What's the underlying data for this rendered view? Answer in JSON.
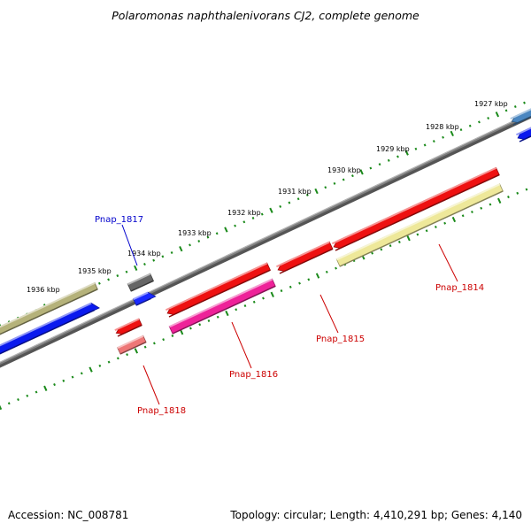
{
  "title": "Polaromonas naphthalenivorans CJ2, complete genome",
  "footer": {
    "accession": "Accession: NC_008781",
    "topology": "Topology: circular; Length: 4,410,291 bp; Genes: 4,140"
  },
  "colors": {
    "backbone": "#808080",
    "tick": "#1a8a1a",
    "label_red": "#cc0000",
    "label_blue": "#0000cc"
  },
  "kbp_labels": [
    "1927 kbp",
    "1928 kbp",
    "1929 kbp",
    "1930 kbp",
    "1931 kbp",
    "1932 kbp",
    "1933 kbp",
    "1934 kbp",
    "1935 kbp",
    "1936 kbp"
  ],
  "features": [
    {
      "name": "olive-feature",
      "color": "#b5b27a"
    },
    {
      "name": "blue-long-feature",
      "color": "#0a1aee"
    },
    {
      "name": "gray-feature",
      "color": "#666666"
    },
    {
      "name": "blue-small-feature",
      "color": "#1a2aff"
    },
    {
      "name": "red-small-feature",
      "color": "#ee1111"
    },
    {
      "name": "pink-small-feature",
      "color": "#ee7777"
    },
    {
      "name": "red-feature-1816",
      "color": "#ee1111"
    },
    {
      "name": "magenta-feature",
      "color": "#ee2299"
    },
    {
      "name": "red-feature-1815",
      "color": "#ee1111"
    },
    {
      "name": "red-feature-1814",
      "color": "#ee1111"
    },
    {
      "name": "yellow-feature",
      "color": "#eee89a"
    },
    {
      "name": "steelblue-feature",
      "color": "#4a86c0"
    },
    {
      "name": "blue-edge-feature",
      "color": "#0a1aee"
    }
  ],
  "gene_labels": [
    {
      "text": "Pnap_1817",
      "color": "#0000cc"
    },
    {
      "text": "Pnap_1814",
      "color": "#cc0000"
    },
    {
      "text": "Pnap_1815",
      "color": "#cc0000"
    },
    {
      "text": "Pnap_1816",
      "color": "#cc0000"
    },
    {
      "text": "Pnap_1818",
      "color": "#cc0000"
    }
  ]
}
